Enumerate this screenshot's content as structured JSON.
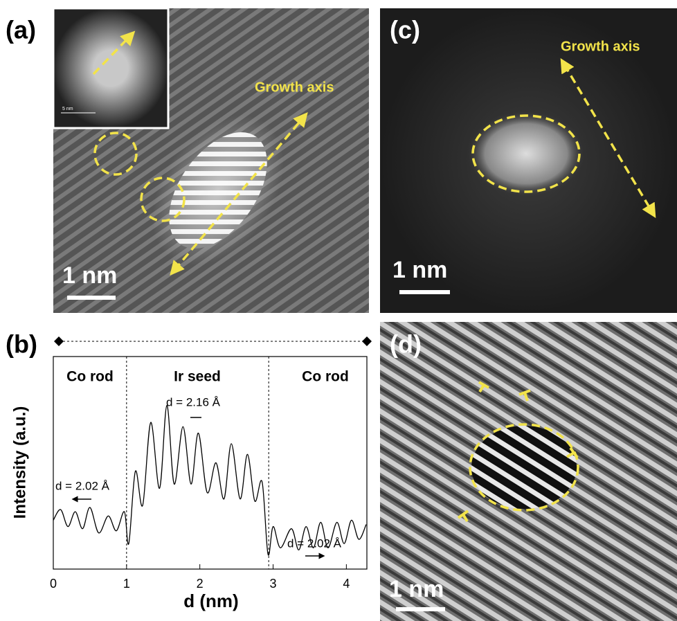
{
  "panels": {
    "a": {
      "label": "(a)",
      "annotation": "Growth axis",
      "scale_bar": "1 nm",
      "inset_scale_bar": "5 nm"
    },
    "c": {
      "label": "(c)",
      "annotation": "Growth axis",
      "scale_bar": "1 nm"
    },
    "d": {
      "label": "(d)",
      "scale_bar": "1 nm"
    }
  },
  "chart_data": {
    "type": "line",
    "panel_label": "(b)",
    "xlabel": "d (nm)",
    "ylabel": "Intensity (a.u.)",
    "xlim": [
      0,
      4.28
    ],
    "xticks": [
      0,
      1,
      2,
      3,
      4
    ],
    "ylim": [
      0,
      100
    ],
    "regions": [
      "Co rod",
      "Ir seed",
      "Co rod"
    ],
    "dividers": [
      1,
      2.94
    ],
    "annotations": [
      "d = 2.02 Å",
      "d = 2.16 Å",
      "d = 2.02 Å"
    ],
    "series": [
      {
        "name": "Intensity",
        "color": "#000000",
        "x": [
          0,
          0.1,
          0.2,
          0.3,
          0.4,
          0.5,
          0.62,
          0.75,
          0.86,
          0.97,
          1.03,
          1.12,
          1.22,
          1.33,
          1.45,
          1.55,
          1.65,
          1.77,
          1.88,
          1.98,
          2.1,
          2.22,
          2.33,
          2.43,
          2.55,
          2.65,
          2.75,
          2.85,
          2.93,
          3.0,
          3.1,
          3.25,
          3.35,
          3.45,
          3.55,
          3.65,
          3.75,
          3.87,
          3.97,
          4.07,
          4.17,
          4.27
        ],
        "values": [
          23,
          28,
          20,
          27,
          19,
          29,
          17,
          25,
          18,
          27,
          12,
          46,
          30,
          69,
          38,
          77,
          40,
          67,
          40,
          64,
          36,
          50,
          33,
          59,
          33,
          54,
          32,
          41,
          7,
          20,
          10,
          19,
          9,
          20,
          10,
          22,
          10,
          22,
          12,
          23,
          14,
          21
        ]
      }
    ]
  }
}
